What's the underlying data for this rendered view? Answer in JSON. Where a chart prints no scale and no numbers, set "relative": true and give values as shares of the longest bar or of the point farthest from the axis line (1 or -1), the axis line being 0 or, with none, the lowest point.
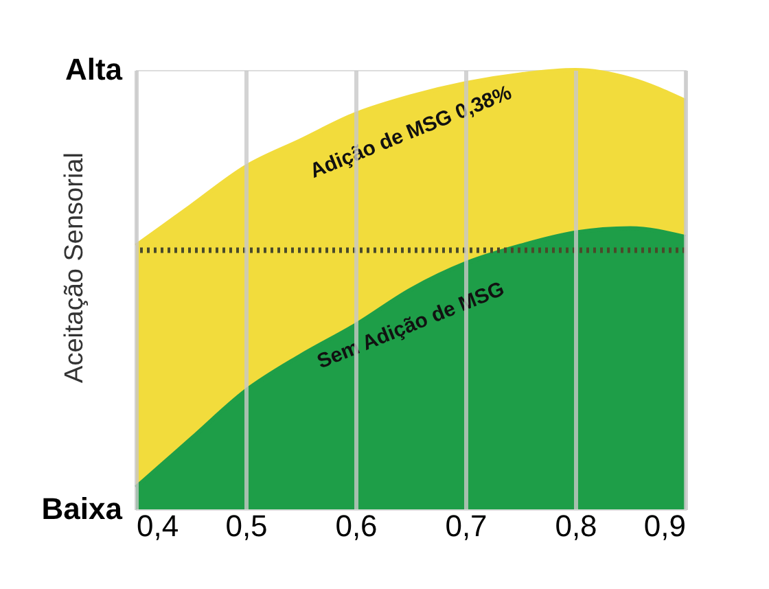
{
  "chart_data": {
    "type": "area",
    "relative": true,
    "ylabel": "Aceitação Sensorial",
    "x": [
      0.4,
      0.45,
      0.5,
      0.55,
      0.6,
      0.65,
      0.7,
      0.75,
      0.8,
      0.85,
      0.9
    ],
    "xlim": [
      0.4,
      0.9
    ],
    "xticks": [
      {
        "value": 0.4,
        "label": "0,4"
      },
      {
        "value": 0.5,
        "label": "0,5"
      },
      {
        "value": 0.6,
        "label": "0,6"
      },
      {
        "value": 0.7,
        "label": "0,7"
      },
      {
        "value": 0.8,
        "label": "0,8"
      },
      {
        "value": 0.9,
        "label": "0,9"
      }
    ],
    "series": [
      {
        "name": "Adição de MSG 0,38%",
        "color": "#f2dc3c",
        "values": [
          0.6,
          0.69,
          0.78,
          0.84,
          0.9,
          0.94,
          0.97,
          0.99,
          1.0,
          0.98,
          0.93
        ]
      },
      {
        "name": "Sem Adição de MSG",
        "color": "#1e9e48",
        "values": [
          0.05,
          0.16,
          0.27,
          0.35,
          0.42,
          0.5,
          0.56,
          0.6,
          0.63,
          0.64,
          0.62
        ]
      }
    ],
    "ref_lines": [
      {
        "axis": "y",
        "value": 0.59,
        "label": null,
        "color": "#4a4a2a",
        "line_style": "dotted"
      }
    ],
    "annotations": [
      "Alta",
      "Baixa"
    ],
    "grid": "x"
  }
}
